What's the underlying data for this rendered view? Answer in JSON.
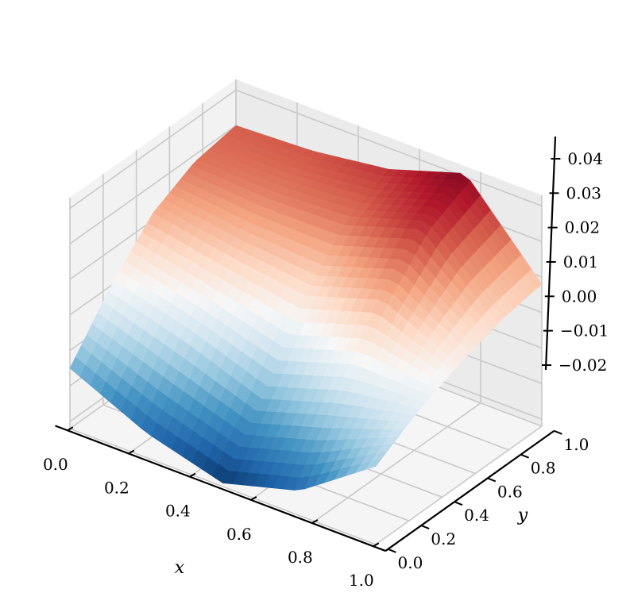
{
  "chart_data": {
    "type": "surface3d",
    "title": "",
    "xlabel": "x",
    "ylabel": "y",
    "zlabel": "",
    "xlim": [
      0.0,
      1.0
    ],
    "ylim": [
      0.0,
      1.0
    ],
    "zlim": [
      -0.022,
      0.043
    ],
    "x_ticks": [
      "0.0",
      "0.2",
      "0.4",
      "0.6",
      "0.8",
      "1.0"
    ],
    "y_ticks": [
      "0.0",
      "0.2",
      "0.4",
      "0.6",
      "0.8",
      "1.0"
    ],
    "z_ticks": [
      "−0.02",
      "−0.01",
      "0.00",
      "0.01",
      "0.02",
      "0.03",
      "0.04"
    ],
    "x_tick_values": [
      0.0,
      0.2,
      0.4,
      0.6,
      0.8,
      1.0
    ],
    "y_tick_values": [
      0.0,
      0.2,
      0.4,
      0.6,
      0.8,
      1.0
    ],
    "z_tick_values": [
      -0.02,
      -0.01,
      0.0,
      0.01,
      0.02,
      0.03,
      0.04
    ],
    "colormap": "RdBu_r",
    "grid": true,
    "grid_x": [
      0.0,
      0.25,
      0.5,
      0.75,
      1.0
    ],
    "grid_y": [
      0.0,
      0.25,
      0.5,
      0.75,
      1.0
    ],
    "z_grid": [
      [
        -0.005,
        0.01,
        0.022,
        0.028,
        0.03
      ],
      [
        -0.015,
        0.004,
        0.018,
        0.027,
        0.031
      ],
      [
        -0.021,
        -0.004,
        0.015,
        0.028,
        0.034
      ],
      [
        -0.015,
        0.003,
        0.022,
        0.035,
        0.041
      ],
      [
        0.0,
        0.007,
        0.012,
        0.016,
        0.018
      ]
    ]
  }
}
